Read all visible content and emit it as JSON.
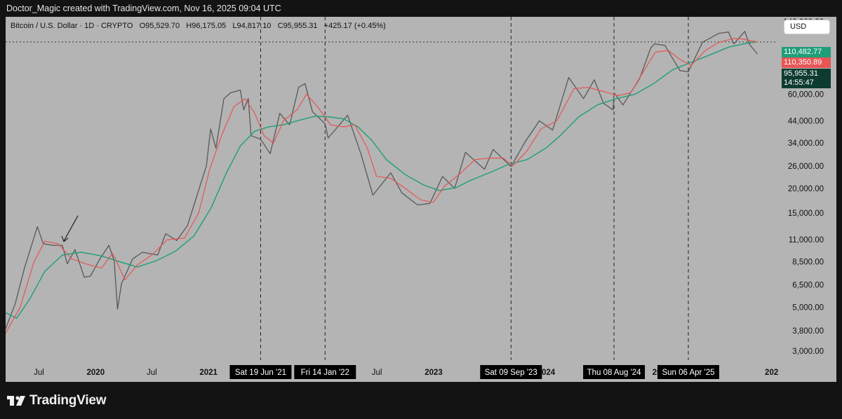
{
  "header": {
    "caption": "Doctor_Magic created with TradingView.com, Nov 16, 2025 09:04 UTC"
  },
  "legend": {
    "symbol": "Bitcoin / U.S. Dollar · 1D · CRYPTO",
    "open": "O95,529.70",
    "high": "H96,175.05",
    "low": "L94,817.10",
    "close": "C95,955.31",
    "change": "+425.17 (+0.45%)"
  },
  "currency_button": "USD",
  "price_tags": {
    "ma_green": "110,482.77",
    "ma_red": "110,350.89",
    "last_price": "95,955.31",
    "countdown": "14:55:47"
  },
  "footer": {
    "brand": "TradingView"
  },
  "colors": {
    "background": "#b4b4b4",
    "candles": "#595959",
    "ma_fast": "#e85555",
    "ma_slow": "#1f9e7a",
    "tag_green": "#1f9e7a",
    "tag_red": "#e85555",
    "tag_dark": "#0d3b2e"
  },
  "chart_data": {
    "type": "line",
    "scale": "log",
    "series": [
      {
        "values": [
          {
            "x": "2019-03-15",
            "y": 3900
          },
          {
            "x": "2019-04-15",
            "y": 5200
          },
          {
            "x": "2019-05-15",
            "y": 7900
          },
          {
            "x": "2019-06-26",
            "y": 12800
          },
          {
            "x": "2019-07-15",
            "y": 10500
          },
          {
            "x": "2019-08-15",
            "y": 10300
          },
          {
            "x": "2019-09-15",
            "y": 10300
          },
          {
            "x": "2019-10-01",
            "y": 8300
          },
          {
            "x": "2019-10-26",
            "y": 9800
          },
          {
            "x": "2019-11-25",
            "y": 7100
          },
          {
            "x": "2019-12-15",
            "y": 7200
          },
          {
            "x": "2020-01-15",
            "y": 8800
          },
          {
            "x": "2020-02-13",
            "y": 10300
          },
          {
            "x": "2020-03-01",
            "y": 8600
          },
          {
            "x": "2020-03-12",
            "y": 4900
          },
          {
            "x": "2020-03-25",
            "y": 6600
          },
          {
            "x": "2020-04-30",
            "y": 8800
          },
          {
            "x": "2020-06-01",
            "y": 9500
          },
          {
            "x": "2020-07-20",
            "y": 9200
          },
          {
            "x": "2020-08-15",
            "y": 11800
          },
          {
            "x": "2020-09-20",
            "y": 10900
          },
          {
            "x": "2020-10-25",
            "y": 13000
          },
          {
            "x": "2020-11-25",
            "y": 18500
          },
          {
            "x": "2020-12-25",
            "y": 26000
          },
          {
            "x": "2021-01-08",
            "y": 40000
          },
          {
            "x": "2021-01-25",
            "y": 32000
          },
          {
            "x": "2021-02-20",
            "y": 57000
          },
          {
            "x": "2021-03-13",
            "y": 61000
          },
          {
            "x": "2021-04-14",
            "y": 63000
          },
          {
            "x": "2021-04-25",
            "y": 50000
          },
          {
            "x": "2021-05-10",
            "y": 57000
          },
          {
            "x": "2021-05-19",
            "y": 37000
          },
          {
            "x": "2021-06-19",
            "y": 35500
          },
          {
            "x": "2021-07-20",
            "y": 30000
          },
          {
            "x": "2021-08-20",
            "y": 48000
          },
          {
            "x": "2021-09-21",
            "y": 42000
          },
          {
            "x": "2021-10-20",
            "y": 65000
          },
          {
            "x": "2021-11-10",
            "y": 68000
          },
          {
            "x": "2021-12-04",
            "y": 49000
          },
          {
            "x": "2022-01-14",
            "y": 42500
          },
          {
            "x": "2022-01-24",
            "y": 36000
          },
          {
            "x": "2022-03-28",
            "y": 47000
          },
          {
            "x": "2022-05-10",
            "y": 30000
          },
          {
            "x": "2022-06-18",
            "y": 18500
          },
          {
            "x": "2022-08-15",
            "y": 24000
          },
          {
            "x": "2022-09-20",
            "y": 19000
          },
          {
            "x": "2022-11-10",
            "y": 16500
          },
          {
            "x": "2022-12-20",
            "y": 16800
          },
          {
            "x": "2023-01-30",
            "y": 23000
          },
          {
            "x": "2023-03-10",
            "y": 20000
          },
          {
            "x": "2023-04-14",
            "y": 30500
          },
          {
            "x": "2023-06-15",
            "y": 25000
          },
          {
            "x": "2023-07-13",
            "y": 31500
          },
          {
            "x": "2023-09-09",
            "y": 25800
          },
          {
            "x": "2023-10-25",
            "y": 34500
          },
          {
            "x": "2023-12-10",
            "y": 44000
          },
          {
            "x": "2024-01-22",
            "y": 39500
          },
          {
            "x": "2024-03-14",
            "y": 73000
          },
          {
            "x": "2024-05-01",
            "y": 57000
          },
          {
            "x": "2024-06-05",
            "y": 71000
          },
          {
            "x": "2024-07-05",
            "y": 54000
          },
          {
            "x": "2024-08-05",
            "y": 50000
          },
          {
            "x": "2024-08-08",
            "y": 61000
          },
          {
            "x": "2024-09-06",
            "y": 53000
          },
          {
            "x": "2024-10-30",
            "y": 72000
          },
          {
            "x": "2024-12-05",
            "y": 103000
          },
          {
            "x": "2024-12-17",
            "y": 108000
          },
          {
            "x": "2025-01-20",
            "y": 106000
          },
          {
            "x": "2025-03-10",
            "y": 79000
          },
          {
            "x": "2025-04-06",
            "y": 78000
          },
          {
            "x": "2025-05-22",
            "y": 110000
          },
          {
            "x": "2025-07-14",
            "y": 122000
          },
          {
            "x": "2025-08-14",
            "y": 124000
          },
          {
            "x": "2025-09-01",
            "y": 108000
          },
          {
            "x": "2025-10-06",
            "y": 125000
          },
          {
            "x": "2025-10-20",
            "y": 108000
          },
          {
            "x": "2025-11-16",
            "y": 95955.31
          }
        ]
      },
      {
        "values": [
          {
            "x": "2019-03-15",
            "y": 3700
          },
          {
            "x": "2019-05-01",
            "y": 5000
          },
          {
            "x": "2019-06-15",
            "y": 8500
          },
          {
            "x": "2019-07-20",
            "y": 10800
          },
          {
            "x": "2019-09-01",
            "y": 10500
          },
          {
            "x": "2019-10-15",
            "y": 8800
          },
          {
            "x": "2019-11-30",
            "y": 8300
          },
          {
            "x": "2020-01-20",
            "y": 7900
          },
          {
            "x": "2020-02-25",
            "y": 9400
          },
          {
            "x": "2020-04-05",
            "y": 6900
          },
          {
            "x": "2020-05-15",
            "y": 8200
          },
          {
            "x": "2020-07-01",
            "y": 9200
          },
          {
            "x": "2020-08-20",
            "y": 11000
          },
          {
            "x": "2020-10-15",
            "y": 11200
          },
          {
            "x": "2020-11-30",
            "y": 15000
          },
          {
            "x": "2021-01-05",
            "y": 25000
          },
          {
            "x": "2021-02-15",
            "y": 38000
          },
          {
            "x": "2021-03-25",
            "y": 52000
          },
          {
            "x": "2021-04-30",
            "y": 57000
          },
          {
            "x": "2021-05-31",
            "y": 48000
          },
          {
            "x": "2021-06-30",
            "y": 37000
          },
          {
            "x": "2021-07-31",
            "y": 34000
          },
          {
            "x": "2021-09-01",
            "y": 44000
          },
          {
            "x": "2021-10-15",
            "y": 50000
          },
          {
            "x": "2021-11-15",
            "y": 60000
          },
          {
            "x": "2021-12-20",
            "y": 52000
          },
          {
            "x": "2022-02-01",
            "y": 42000
          },
          {
            "x": "2022-03-15",
            "y": 41000
          },
          {
            "x": "2022-04-20",
            "y": 42000
          },
          {
            "x": "2022-05-31",
            "y": 32000
          },
          {
            "x": "2022-06-30",
            "y": 23000
          },
          {
            "x": "2022-08-15",
            "y": 22500
          },
          {
            "x": "2022-10-01",
            "y": 20000
          },
          {
            "x": "2022-11-20",
            "y": 17500
          },
          {
            "x": "2022-12-31",
            "y": 17000
          },
          {
            "x": "2023-02-05",
            "y": 20500
          },
          {
            "x": "2023-03-31",
            "y": 24000
          },
          {
            "x": "2023-05-15",
            "y": 28000
          },
          {
            "x": "2023-07-01",
            "y": 28500
          },
          {
            "x": "2023-08-15",
            "y": 28500
          },
          {
            "x": "2023-09-15",
            "y": 26000
          },
          {
            "x": "2023-10-31",
            "y": 31000
          },
          {
            "x": "2023-12-15",
            "y": 40000
          },
          {
            "x": "2024-02-05",
            "y": 44000
          },
          {
            "x": "2024-03-31",
            "y": 64000
          },
          {
            "x": "2024-05-15",
            "y": 65000
          },
          {
            "x": "2024-07-05",
            "y": 62000
          },
          {
            "x": "2024-08-20",
            "y": 59000
          },
          {
            "x": "2024-10-01",
            "y": 61000
          },
          {
            "x": "2024-11-15",
            "y": 80000
          },
          {
            "x": "2024-12-20",
            "y": 98000
          },
          {
            "x": "2025-01-31",
            "y": 100000
          },
          {
            "x": "2025-03-10",
            "y": 90000
          },
          {
            "x": "2025-04-15",
            "y": 84000
          },
          {
            "x": "2025-05-31",
            "y": 100000
          },
          {
            "x": "2025-07-15",
            "y": 110000
          },
          {
            "x": "2025-08-31",
            "y": 115000
          },
          {
            "x": "2025-10-01",
            "y": 114000
          },
          {
            "x": "2025-11-16",
            "y": 110350.89
          }
        ]
      },
      {
        "values": [
          {
            "x": "2019-03-15",
            "y": 4700
          },
          {
            "x": "2019-04-20",
            "y": 4400
          },
          {
            "x": "2019-06-01",
            "y": 5500
          },
          {
            "x": "2019-07-20",
            "y": 7600
          },
          {
            "x": "2019-09-15",
            "y": 9200
          },
          {
            "x": "2019-11-15",
            "y": 9500
          },
          {
            "x": "2020-01-20",
            "y": 9100
          },
          {
            "x": "2020-03-20",
            "y": 8500
          },
          {
            "x": "2020-05-15",
            "y": 8000
          },
          {
            "x": "2020-07-15",
            "y": 8600
          },
          {
            "x": "2020-09-15",
            "y": 9600
          },
          {
            "x": "2020-11-15",
            "y": 11500
          },
          {
            "x": "2021-01-10",
            "y": 16000
          },
          {
            "x": "2021-02-28",
            "y": 24000
          },
          {
            "x": "2021-04-15",
            "y": 33000
          },
          {
            "x": "2021-05-31",
            "y": 39000
          },
          {
            "x": "2021-07-15",
            "y": 41000
          },
          {
            "x": "2021-09-01",
            "y": 42000
          },
          {
            "x": "2021-10-15",
            "y": 44000
          },
          {
            "x": "2021-12-15",
            "y": 46500
          },
          {
            "x": "2022-02-01",
            "y": 46000
          },
          {
            "x": "2022-03-15",
            "y": 45000
          },
          {
            "x": "2022-05-01",
            "y": 41000
          },
          {
            "x": "2022-06-15",
            "y": 35000
          },
          {
            "x": "2022-08-01",
            "y": 28000
          },
          {
            "x": "2022-10-01",
            "y": 23500
          },
          {
            "x": "2022-11-30",
            "y": 20800
          },
          {
            "x": "2023-01-20",
            "y": 19500
          },
          {
            "x": "2023-03-15",
            "y": 20200
          },
          {
            "x": "2023-05-01",
            "y": 22000
          },
          {
            "x": "2023-07-01",
            "y": 24000
          },
          {
            "x": "2023-09-01",
            "y": 26500
          },
          {
            "x": "2023-10-31",
            "y": 28000
          },
          {
            "x": "2023-12-31",
            "y": 32000
          },
          {
            "x": "2024-02-15",
            "y": 37000
          },
          {
            "x": "2024-04-15",
            "y": 46000
          },
          {
            "x": "2024-06-15",
            "y": 53000
          },
          {
            "x": "2024-08-15",
            "y": 57000
          },
          {
            "x": "2024-10-15",
            "y": 60000
          },
          {
            "x": "2024-12-15",
            "y": 68000
          },
          {
            "x": "2025-02-15",
            "y": 80000
          },
          {
            "x": "2025-04-15",
            "y": 87000
          },
          {
            "x": "2025-06-15",
            "y": 95000
          },
          {
            "x": "2025-08-15",
            "y": 104000
          },
          {
            "x": "2025-10-15",
            "y": 109000
          },
          {
            "x": "2025-11-16",
            "y": 110482.77
          }
        ]
      }
    ],
    "x_range": [
      "2019-03-15",
      "2026-01-20"
    ],
    "y_range": [
      2700,
      148000
    ],
    "y_ticks": [
      "140,000.00",
      "60,000.00",
      "44,000.00",
      "34,000.00",
      "26,000.00",
      "20,000.00",
      "15,000.00",
      "11,000.00",
      "8,500.00",
      "6,500.00",
      "5,000.00",
      "3,800.00",
      "3,000.00"
    ],
    "y_tick_values": [
      140000,
      60000,
      44000,
      34000,
      26000,
      20000,
      15000,
      11000,
      8500,
      6500,
      5000,
      3800,
      3000
    ],
    "x_ticks": [
      {
        "label": "Jul",
        "x": "2019-07-01",
        "bold": false
      },
      {
        "label": "2020",
        "x": "2020-01-01",
        "bold": true
      },
      {
        "label": "Jul",
        "x": "2020-07-01",
        "bold": false
      },
      {
        "label": "2021",
        "x": "2021-01-01",
        "bold": true
      },
      {
        "label": "Jul",
        "x": "2022-07-01",
        "bold": false
      },
      {
        "label": "2023",
        "x": "2023-01-01",
        "bold": true
      },
      {
        "label": "2024",
        "x": "2024-01-01",
        "bold": true
      },
      {
        "label": "202",
        "x": "2025-01-01",
        "bold": true
      },
      {
        "label": "202",
        "x": "2026-01-01",
        "bold": true
      }
    ],
    "vertical_markers": [
      {
        "label": "Sat 19 Jun '21",
        "x": "2021-06-19"
      },
      {
        "label": "Fri 14 Jan '22",
        "x": "2022-01-14"
      },
      {
        "label": "Sat 09 Sep '23",
        "x": "2023-09-09"
      },
      {
        "label": "Thu 08 Aug '24",
        "x": "2024-08-08"
      },
      {
        "label": "Sun 06 Apr '25",
        "x": "2025-04-06"
      }
    ],
    "horizontal_marker": 110350.89,
    "annotation_arrow": {
      "x": "2019-09-20",
      "y": 10500
    },
    "grid": false,
    "legend": "top-left"
  }
}
